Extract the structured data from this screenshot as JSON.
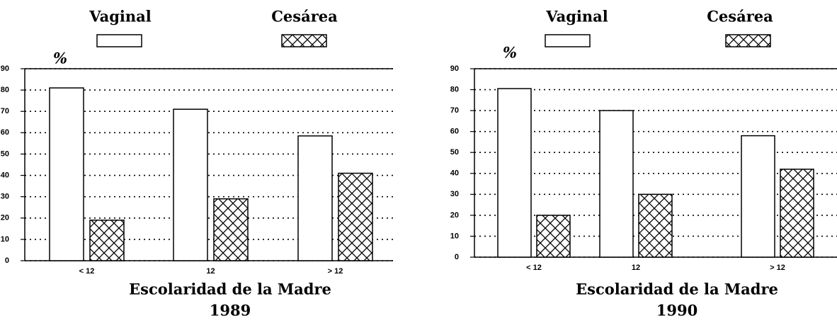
{
  "chart_data": [
    {
      "type": "bar",
      "title": "1989",
      "xlabel": "Escolaridad de la Madre",
      "ylabel": "%",
      "categories": [
        "< 12",
        "12",
        "> 12"
      ],
      "series": [
        {
          "name": "Vaginal",
          "color": "#ffffff",
          "pattern": "none",
          "values": [
            81,
            71,
            58.5
          ]
        },
        {
          "name": "Cesárea",
          "color": "#000000",
          "pattern": "crosshatch",
          "values": [
            19,
            29,
            41
          ]
        }
      ],
      "ylim": [
        0,
        90
      ],
      "yticks": [
        0,
        10,
        20,
        30,
        40,
        50,
        60,
        70,
        80,
        90
      ],
      "grid": true
    },
    {
      "type": "bar",
      "title": "1990",
      "xlabel": "Escolaridad de la Madre",
      "ylabel": "%",
      "categories": [
        "< 12",
        "12",
        "> 12"
      ],
      "series": [
        {
          "name": "Vaginal",
          "color": "#ffffff",
          "pattern": "none",
          "values": [
            80.5,
            70,
            58
          ]
        },
        {
          "name": "Cesárea",
          "color": "#000000",
          "pattern": "crosshatch",
          "values": [
            20,
            30,
            42
          ]
        }
      ],
      "ylim": [
        0,
        90
      ],
      "yticks": [
        0,
        10,
        20,
        30,
        40,
        50,
        60,
        70,
        80,
        90
      ],
      "grid": true
    }
  ]
}
